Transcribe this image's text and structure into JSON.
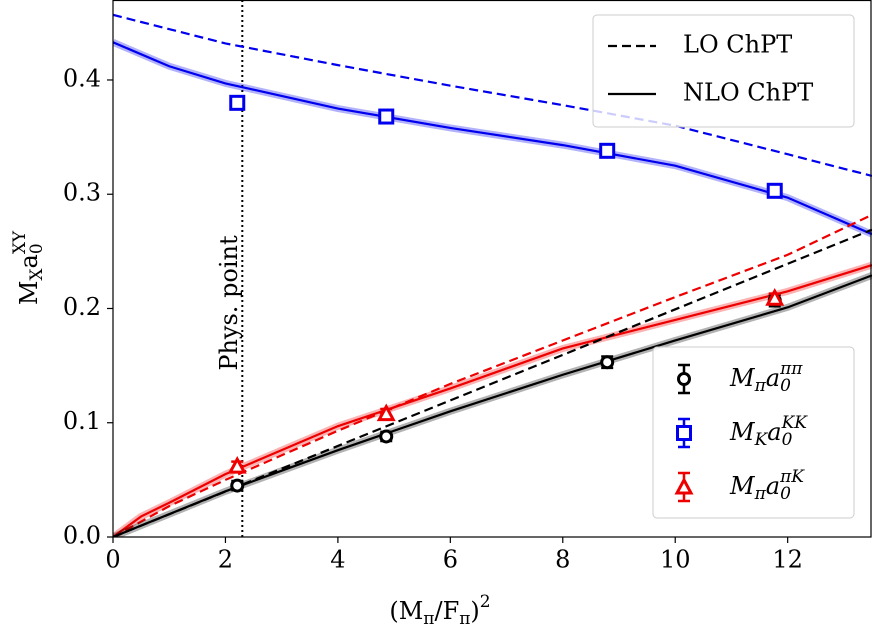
{
  "chart_data": {
    "type": "line",
    "x_label": [
      {
        "t": "(M"
      },
      {
        "t": "π",
        "s": "sub"
      },
      {
        "t": "/F"
      },
      {
        "t": "π",
        "s": "sub"
      },
      {
        "t": ")"
      },
      {
        "t": "2",
        "s": "sup"
      }
    ],
    "y_label": [
      {
        "t": "M"
      },
      {
        "t": "X",
        "s": "sub"
      },
      {
        "t": "a"
      },
      {
        "t": "0",
        "s": "sub"
      },
      {
        "t": "XY",
        "s": "sup"
      }
    ],
    "annotation": {
      "text": "Phys. point",
      "x": 2.3
    },
    "xlim": [
      0,
      13.5
    ],
    "ylim": [
      0,
      0.47
    ],
    "xticks": [
      0,
      2,
      4,
      6,
      8,
      10,
      12
    ],
    "yticks": [
      {
        "value": 0,
        "label": "0.0"
      },
      0.1,
      0.2,
      0.3,
      0.4
    ],
    "style_legend": [
      {
        "label": "LO ChPT",
        "dash": true
      },
      {
        "label": "NLO ChPT",
        "dash": false
      }
    ],
    "curves": [
      {
        "color": "#0000ee",
        "dash": true,
        "x": [
          0,
          2,
          4,
          6,
          8,
          10,
          12,
          13.5
        ],
        "values": [
          0.457,
          0.432,
          0.413,
          0.395,
          0.378,
          0.36,
          0.335,
          0.316
        ]
      },
      {
        "color": "#0000ee",
        "dash": false,
        "x": [
          0,
          1,
          2,
          4,
          6,
          8,
          10,
          12,
          13.5
        ],
        "values": [
          0.433,
          0.412,
          0.397,
          0.375,
          0.358,
          0.343,
          0.325,
          0.297,
          0.265
        ]
      },
      {
        "color": "#ee0000",
        "dash": true,
        "x": [
          0,
          1,
          2,
          4,
          6,
          8,
          10,
          12,
          13.5
        ],
        "values": [
          0,
          0.027,
          0.05,
          0.093,
          0.134,
          0.172,
          0.21,
          0.247,
          0.282
        ]
      },
      {
        "color": "#ee0000",
        "dash": false,
        "x": [
          0,
          0.5,
          1,
          2,
          4,
          6,
          8,
          10,
          12,
          13.5
        ],
        "values": [
          0,
          0.018,
          0.03,
          0.055,
          0.097,
          0.13,
          0.165,
          0.19,
          0.215,
          0.238
        ]
      },
      {
        "color": "#000000",
        "dash": true,
        "x": [
          0,
          13.5
        ],
        "values": [
          0,
          0.269
        ]
      },
      {
        "color": "#000000",
        "dash": false,
        "x": [
          0,
          2,
          4,
          6,
          8,
          10,
          12,
          13.5
        ],
        "values": [
          0,
          0.04,
          0.076,
          0.11,
          0.142,
          0.172,
          0.201,
          0.229
        ]
      }
    ],
    "series": [
      {
        "name": [
          {
            "t": "M"
          },
          {
            "t": "π",
            "s": "sub"
          },
          {
            "t": "a"
          },
          {
            "t": "0",
            "s": "sub"
          },
          {
            "t": "ππ",
            "s": "sup"
          }
        ],
        "marker": "circle",
        "color": "#000000",
        "x": [
          2.21,
          4.86,
          8.79,
          11.77
        ],
        "values": [
          0.045,
          0.088,
          0.153,
          0.207
        ],
        "errors": [
          0.004,
          0.004,
          0.005,
          0.005
        ]
      },
      {
        "name": [
          {
            "t": "M"
          },
          {
            "t": "K",
            "s": "sub"
          },
          {
            "t": "a"
          },
          {
            "t": "0",
            "s": "sub"
          },
          {
            "t": "KK",
            "s": "sup"
          }
        ],
        "marker": "square",
        "color": "#0000ee",
        "x": [
          2.21,
          4.86,
          8.79,
          11.77
        ],
        "values": [
          0.38,
          0.368,
          0.338,
          0.303
        ],
        "errors": [
          0.005,
          0.004,
          0.004,
          0.004
        ]
      },
      {
        "name": [
          {
            "t": "M"
          },
          {
            "t": "π",
            "s": "sub"
          },
          {
            "t": "a"
          },
          {
            "t": "0",
            "s": "sub"
          },
          {
            "t": "πK",
            "s": "sup"
          }
        ],
        "marker": "triangle",
        "color": "#ee0000",
        "x": [
          2.21,
          4.86,
          11.77
        ],
        "values": [
          0.062,
          0.108,
          0.209
        ],
        "errors": [
          0.004,
          0.004,
          0.004
        ]
      }
    ]
  }
}
